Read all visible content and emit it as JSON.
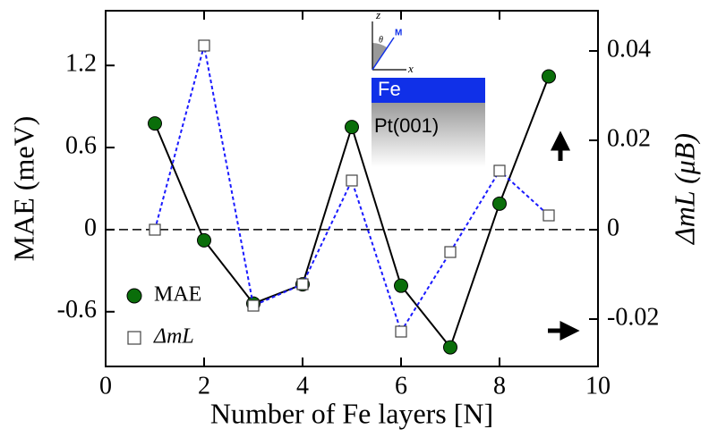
{
  "chart_data": {
    "type": "line",
    "xlabel": "Number of Fe layers [N]",
    "ylabel": "MAE (meV)",
    "y2label": "ΔmL (μB)",
    "x": [
      1,
      2,
      3,
      4,
      5,
      6,
      7,
      8,
      9
    ],
    "series": [
      {
        "name": "MAE",
        "color": "#0a6e0a",
        "values": [
          0.776,
          -0.078,
          -0.54,
          -0.4,
          0.75,
          -0.41,
          -0.86,
          0.19,
          1.12
        ]
      },
      {
        "name": "ΔmL",
        "color": "#1a1aff",
        "axis": "y2",
        "values": [
          0,
          0.0412,
          -0.017,
          -0.0122,
          0.011,
          -0.0228,
          -0.005,
          0.0132,
          0.0032
        ]
      }
    ],
    "xlim": [
      0,
      10
    ],
    "xticks": [
      0,
      2,
      4,
      6,
      8,
      10
    ],
    "ylim": [
      -1.0,
      1.6
    ],
    "yticks": [
      -0.6,
      0,
      0.6,
      1.2
    ],
    "y2lim": [
      -0.0306,
      0.049
    ],
    "y2ticks": [
      -0.02,
      0,
      0.02,
      0.04
    ],
    "legend": "lower left",
    "inset": {
      "layer": "Fe",
      "substrate": "Pt(001)",
      "z": "z",
      "x": "x",
      "theta": "θ",
      "m": "M"
    }
  }
}
